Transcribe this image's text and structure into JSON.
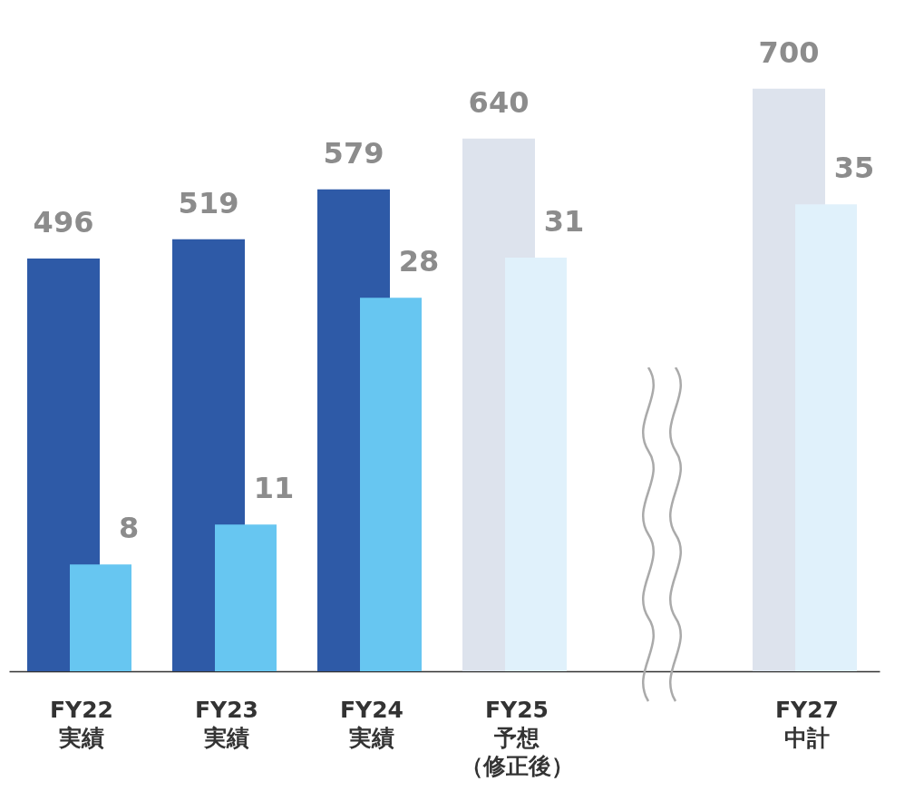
{
  "chart_data": {
    "type": "bar",
    "categories": [
      "FY22\n実績",
      "FY23\n実績",
      "FY24\n実績",
      "FY25\n予想（修正後）",
      null,
      "FY27\n中計"
    ],
    "series": [
      {
        "colors": [
          "#2e5aa7",
          "#2e5aa7",
          "#2e5aa7",
          "#dde3ed",
          null,
          "#dde3ed"
        ],
        "values": [
          496,
          519,
          579,
          640,
          null,
          700
        ]
      },
      {
        "axis": "y2",
        "colors": [
          "#67c6f1",
          "#67c6f1",
          "#67c6f1",
          "#e0f1fb",
          null,
          "#e0f1fb"
        ],
        "values": [
          8,
          11,
          28,
          31,
          null,
          35
        ]
      }
    ],
    "data_labels": true
  }
}
